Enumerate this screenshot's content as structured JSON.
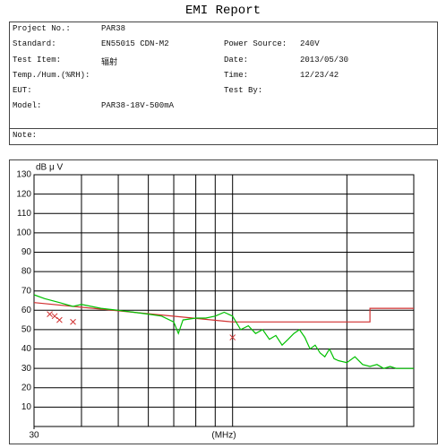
{
  "report": {
    "title": "EMI Report",
    "fields": [
      {
        "label": "Project No.:",
        "value": "PAR38"
      },
      {
        "label": "Standard:",
        "value": "EN55015 CDN-M2"
      },
      {
        "label": "Power Source:",
        "value": "240V"
      },
      {
        "label": "Test Item:",
        "value": "辐射"
      },
      {
        "label": "Date:",
        "value": "2013/05/30"
      },
      {
        "label": "Temp./Hum.(%RH):"
      },
      {
        "label": "Time:",
        "value": "12/23/42"
      },
      {
        "label": "EUT:"
      },
      {
        "label": "Test By:"
      },
      {
        "label": "Model:",
        "value": "PAR38-18V-500mA"
      },
      {
        "label": "Note:"
      }
    ]
  },
  "chart_data": {
    "type": "line",
    "y_label": "dB μ V",
    "x_label": "(MHz)",
    "xscale": "log",
    "xlim": [
      30,
      300
    ],
    "xticks": [
      30
    ],
    "xgrid": [
      40,
      50,
      60,
      70,
      80,
      90,
      100,
      200
    ],
    "ylim": [
      0,
      130
    ],
    "yticks": [
      10,
      20,
      30,
      40,
      50,
      60,
      70,
      80,
      90,
      100,
      110,
      120,
      130
    ],
    "grid": true,
    "series": [
      {
        "color": "#d03030",
        "style": "line",
        "x": [
          30,
          100,
          230,
          230,
          300
        ],
        "values": [
          64,
          54,
          54,
          61,
          61
        ]
      },
      {
        "color": "#00c000",
        "style": "line",
        "x": [
          30,
          32,
          35,
          38,
          40,
          45,
          50,
          55,
          60,
          65,
          70,
          72,
          74,
          80,
          85,
          90,
          95,
          100,
          105,
          110,
          115,
          120,
          125,
          130,
          135,
          140,
          145,
          150,
          155,
          160,
          165,
          170,
          175,
          180,
          185,
          190,
          200,
          210,
          220,
          230,
          240,
          250,
          260,
          270,
          280,
          300
        ],
        "values": [
          68,
          66,
          64,
          62,
          63,
          61,
          60,
          59,
          58,
          57,
          54,
          48,
          55,
          56,
          56,
          57,
          59,
          57,
          50,
          52,
          48,
          50,
          45,
          47,
          42,
          45,
          48,
          50,
          46,
          40,
          42,
          38,
          36,
          40,
          35,
          34,
          33,
          36,
          32,
          31,
          32,
          30,
          31,
          30,
          30,
          30
        ]
      },
      {
        "color": "#d03030",
        "style": "marker",
        "x": [
          33,
          34,
          35,
          38,
          100
        ],
        "values": [
          58,
          57,
          55,
          54,
          46
        ]
      }
    ]
  }
}
